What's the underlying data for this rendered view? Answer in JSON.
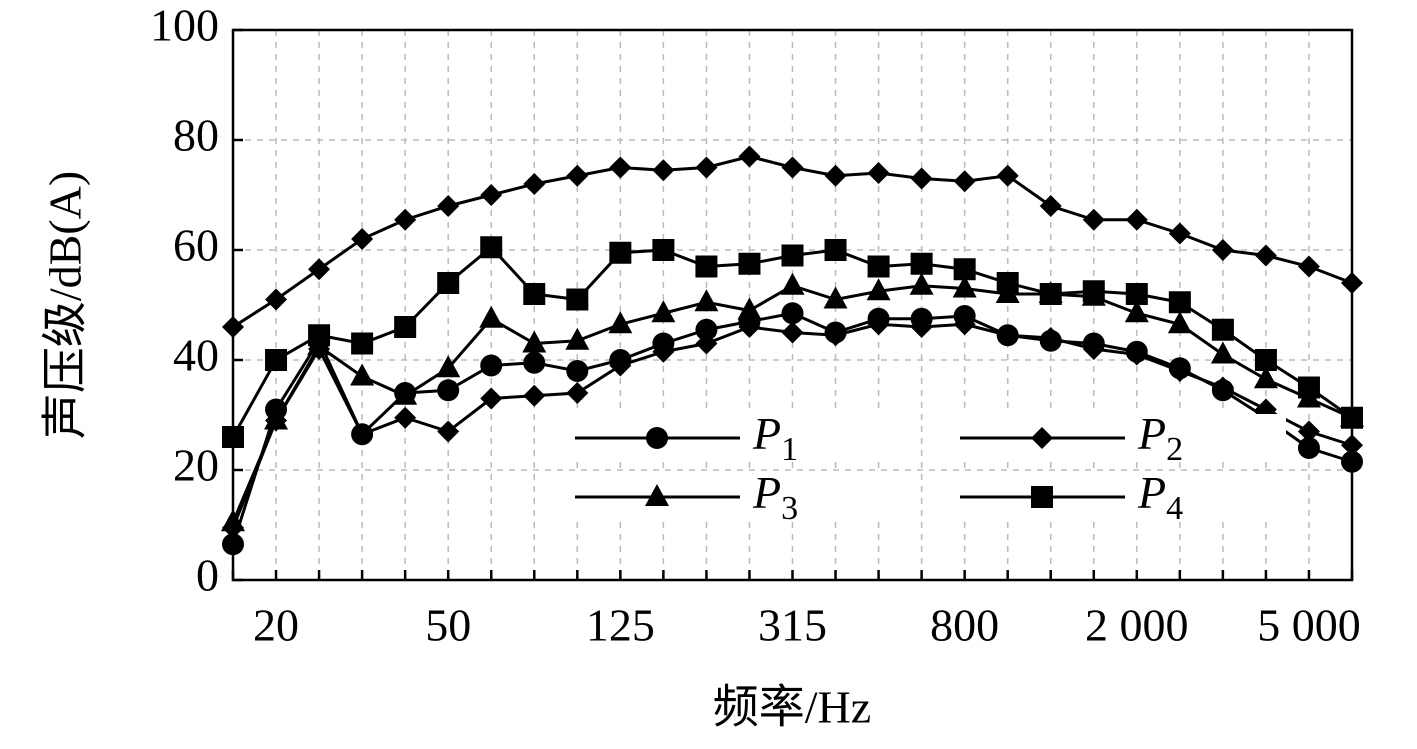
{
  "chart_data": {
    "type": "line",
    "x_label": "频率/Hz",
    "y_label": "声压级/dB(A)",
    "categories": [
      null,
      "20",
      null,
      null,
      null,
      "50",
      null,
      null,
      null,
      "125",
      null,
      null,
      null,
      "315",
      null,
      null,
      null,
      "800",
      null,
      null,
      null,
      "2 000",
      null,
      null,
      null,
      "5 000",
      null
    ],
    "series": [
      {
        "name": "P1",
        "color": "#000000",
        "marker": "circle",
        "values": [
          6.5,
          31,
          43.5,
          26.5,
          34,
          34.5,
          39,
          39.5,
          38,
          40,
          43,
          45.5,
          47,
          48.5,
          45,
          47.5,
          47.5,
          48,
          44.5,
          43.5,
          43,
          41.5,
          38.5,
          34.5,
          29.5,
          24,
          21.5
        ]
      },
      {
        "name": "P2",
        "color": "#000000",
        "marker": "diamond",
        "values": [
          46,
          51,
          56.5,
          62,
          65.5,
          68,
          70,
          72,
          73.5,
          75,
          74.5,
          75,
          77,
          75,
          73.5,
          74,
          73,
          72.5,
          73.5,
          68,
          65.5,
          65.5,
          63,
          60,
          59,
          57,
          54
        ]
      },
      {
        "name": "P3",
        "color": "#000000",
        "marker": "triangle",
        "values": [
          10.5,
          29,
          42.5,
          37,
          33.5,
          38.5,
          47.5,
          43,
          43.5,
          46.5,
          48.5,
          50.5,
          49,
          53.5,
          51,
          52.5,
          53.5,
          53,
          52,
          52,
          51.5,
          48.5,
          46.5,
          41,
          36.5,
          33,
          29.5
        ]
      },
      {
        "name": "P4",
        "color": "#000000",
        "marker": "square",
        "values": [
          26,
          40,
          44.5,
          43,
          46,
          54,
          60.5,
          52,
          51,
          59.5,
          60,
          57,
          57.5,
          59,
          60,
          57,
          57.5,
          56.5,
          54,
          52,
          52.5,
          52,
          50.5,
          45.5,
          40,
          35,
          29.5
        ]
      },
      {
        "name": null,
        "color": "#000000",
        "marker": "diamond",
        "values": [
          9.5,
          29,
          42,
          26.5,
          29.5,
          27,
          33,
          33.5,
          34,
          39,
          41.5,
          43,
          46,
          45,
          44.5,
          46.5,
          46,
          46.5,
          44.5,
          44,
          42,
          41,
          38,
          35,
          31,
          27,
          24.5
        ]
      }
    ],
    "ylim": [
      0,
      100
    ],
    "yticks": [
      0,
      20,
      40,
      60,
      80,
      100
    ],
    "grid": true
  }
}
